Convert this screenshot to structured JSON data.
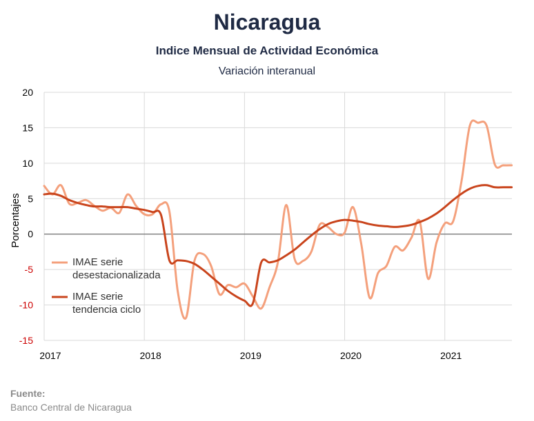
{
  "header": {
    "title": "Nicaragua",
    "subtitle": "Indice Mensual de  Actividad Económica",
    "subtitle2": "Variación interanual"
  },
  "source": {
    "label": "Fuente:",
    "value": "Banco Central de Nicaragua"
  },
  "colors": {
    "desestacionalizada": "#f4a07c",
    "tendencia": "#c9441c",
    "zero_line": "#808080",
    "grid": "#d9d9d9",
    "negative_tick": "#cc0000"
  },
  "chart_data": {
    "type": "line",
    "title": "Nicaragua",
    "ylabel": "Porcentajes",
    "xlabel": "",
    "ylim": [
      -15,
      20
    ],
    "xlim": [
      2017.0,
      2021.67
    ],
    "yticks": [
      {
        "value": 20,
        "label": "20"
      },
      {
        "value": 15,
        "label": "15"
      },
      {
        "value": 10,
        "label": "10"
      },
      {
        "value": 5,
        "label": "5"
      },
      {
        "value": 0,
        "label": "0"
      },
      {
        "value": -5,
        "label": "-5"
      },
      {
        "value": -10,
        "label": "-10"
      },
      {
        "value": -15,
        "label": "-15"
      }
    ],
    "xticks": [
      {
        "value": 2017,
        "label": "2017"
      },
      {
        "value": 2018,
        "label": "2018"
      },
      {
        "value": 2019,
        "label": "2019"
      },
      {
        "value": 2020,
        "label": "2020"
      },
      {
        "value": 2021,
        "label": "2021"
      }
    ],
    "grid": true,
    "legend_position": "bottom-left",
    "series": [
      {
        "name_lines": [
          "IMAE serie",
          "desestacionalizada"
        ],
        "key": "desestacionalizada",
        "x": [
          2017.0,
          2017.083,
          2017.167,
          2017.25,
          2017.333,
          2017.417,
          2017.5,
          2017.583,
          2017.667,
          2017.75,
          2017.833,
          2017.917,
          2018.0,
          2018.083,
          2018.167,
          2018.25,
          2018.333,
          2018.417,
          2018.5,
          2018.583,
          2018.667,
          2018.75,
          2018.833,
          2018.917,
          2019.0,
          2019.083,
          2019.167,
          2019.25,
          2019.333,
          2019.417,
          2019.5,
          2019.583,
          2019.667,
          2019.75,
          2019.833,
          2019.917,
          2020.0,
          2020.083,
          2020.167,
          2020.25,
          2020.333,
          2020.417,
          2020.5,
          2020.583,
          2020.667,
          2020.75,
          2020.833,
          2020.917,
          2021.0,
          2021.083,
          2021.167,
          2021.25,
          2021.333,
          2021.417,
          2021.5,
          2021.583,
          2021.667
        ],
        "values": [
          6.8,
          5.6,
          6.9,
          4.3,
          4.4,
          4.8,
          4.0,
          3.3,
          3.7,
          3.0,
          5.6,
          4.0,
          2.8,
          2.8,
          4.2,
          3.2,
          -8.0,
          -11.8,
          -3.8,
          -2.8,
          -4.5,
          -8.5,
          -7.2,
          -7.5,
          -7.0,
          -8.8,
          -10.5,
          -7.5,
          -4.0,
          4.1,
          -3.5,
          -3.8,
          -2.5,
          1.3,
          1.0,
          0.0,
          0.2,
          3.8,
          -1.5,
          -9.0,
          -5.5,
          -4.5,
          -1.8,
          -2.3,
          -0.5,
          1.8,
          -6.3,
          -1.2,
          1.5,
          1.8,
          7.5,
          15.3,
          15.7,
          15.3,
          9.8,
          9.7,
          9.7
        ]
      },
      {
        "name_lines": [
          "IMAE serie",
          "tendencia ciclo"
        ],
        "key": "tendencia",
        "x": [
          2017.0,
          2017.083,
          2017.167,
          2017.25,
          2017.333,
          2017.417,
          2017.5,
          2017.583,
          2017.667,
          2017.75,
          2017.833,
          2017.917,
          2018.0,
          2018.083,
          2018.167,
          2018.25,
          2018.333,
          2018.417,
          2018.5,
          2018.583,
          2018.667,
          2018.75,
          2018.833,
          2018.917,
          2019.0,
          2019.083,
          2019.167,
          2019.25,
          2019.333,
          2019.417,
          2019.5,
          2019.583,
          2019.667,
          2019.75,
          2019.833,
          2019.917,
          2020.0,
          2020.083,
          2020.167,
          2020.25,
          2020.333,
          2020.417,
          2020.5,
          2020.583,
          2020.667,
          2020.75,
          2020.833,
          2020.917,
          2021.0,
          2021.083,
          2021.167,
          2021.25,
          2021.333,
          2021.417,
          2021.5,
          2021.583,
          2021.667
        ],
        "values": [
          5.6,
          5.7,
          5.4,
          4.8,
          4.4,
          4.1,
          3.9,
          3.9,
          3.8,
          3.8,
          3.8,
          3.6,
          3.4,
          3.1,
          2.7,
          -3.7,
          -3.7,
          -3.8,
          -4.2,
          -5.0,
          -6.0,
          -7.0,
          -8.0,
          -8.8,
          -9.4,
          -9.8,
          -4.0,
          -4.0,
          -3.7,
          -3.0,
          -2.2,
          -1.2,
          -0.2,
          0.7,
          1.4,
          1.8,
          2.0,
          1.9,
          1.7,
          1.4,
          1.2,
          1.1,
          1.0,
          1.1,
          1.3,
          1.7,
          2.2,
          2.9,
          3.8,
          4.8,
          5.7,
          6.4,
          6.8,
          6.9,
          6.6,
          6.6,
          6.6
        ]
      }
    ]
  }
}
